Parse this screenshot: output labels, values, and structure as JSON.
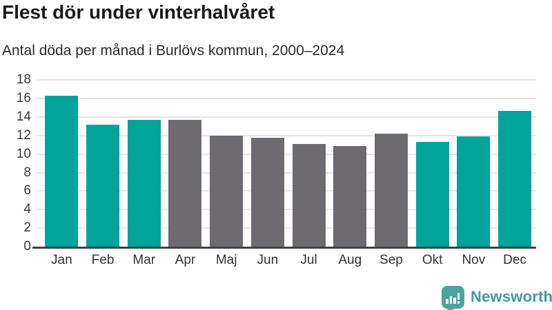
{
  "chart_data": {
    "type": "bar",
    "title": "Flest dör under vinterhalvåret",
    "subtitle": "Antal döda per månad i Burlövs kommun, 2000–2024",
    "categories": [
      "Jan",
      "Feb",
      "Mar",
      "Apr",
      "Maj",
      "Jun",
      "Jul",
      "Aug",
      "Sep",
      "Okt",
      "Nov",
      "Dec"
    ],
    "values": [
      16.3,
      13.2,
      13.7,
      13.7,
      12.0,
      11.8,
      11.1,
      10.9,
      12.2,
      11.3,
      11.9,
      14.7
    ],
    "highlighted": [
      true,
      true,
      true,
      false,
      false,
      false,
      false,
      false,
      false,
      true,
      true,
      true
    ],
    "colors": {
      "highlight": "#00a49b",
      "neutral": "#6e6b70",
      "gridline": "#e7e5e8",
      "axis": "#434043"
    },
    "xlabel": "",
    "ylabel": "",
    "ylim": [
      0,
      18
    ],
    "yticks": [
      0,
      2,
      4,
      6,
      8,
      10,
      12,
      14,
      16,
      18
    ],
    "grid": true,
    "legend": "none"
  },
  "footer": {
    "brand": "Newsworthy",
    "logo_icon": "bar-chart-speech-bubble-icon",
    "brand_color": "#3d9e9a",
    "icon_color": "#4aa5a1"
  }
}
